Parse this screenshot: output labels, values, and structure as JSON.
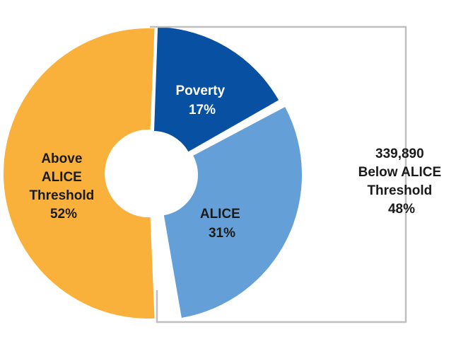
{
  "chart_data": {
    "type": "pie",
    "variant": "donut-exploded",
    "slices": [
      {
        "label": "Above ALICE Threshold",
        "lines": [
          "Above",
          "ALICE",
          "Threshold",
          "52%"
        ],
        "value": 52,
        "color": "#F9B13B",
        "text_color": "#1a1a1a"
      },
      {
        "label": "Poverty",
        "lines": [
          "Poverty",
          "17%"
        ],
        "value": 17,
        "color": "#0850A1",
        "text_color": "#ffffff"
      },
      {
        "label": "ALICE",
        "lines": [
          "ALICE",
          "31%"
        ],
        "value": 31,
        "color": "#64A0D7",
        "text_color": "#1a1a1a"
      }
    ],
    "bracket": {
      "lines": [
        "339,890",
        "Below ALICE",
        "Threshold",
        "48%"
      ],
      "count": 339890,
      "percent": 48,
      "stroke_color": "#BFBFBF"
    }
  }
}
